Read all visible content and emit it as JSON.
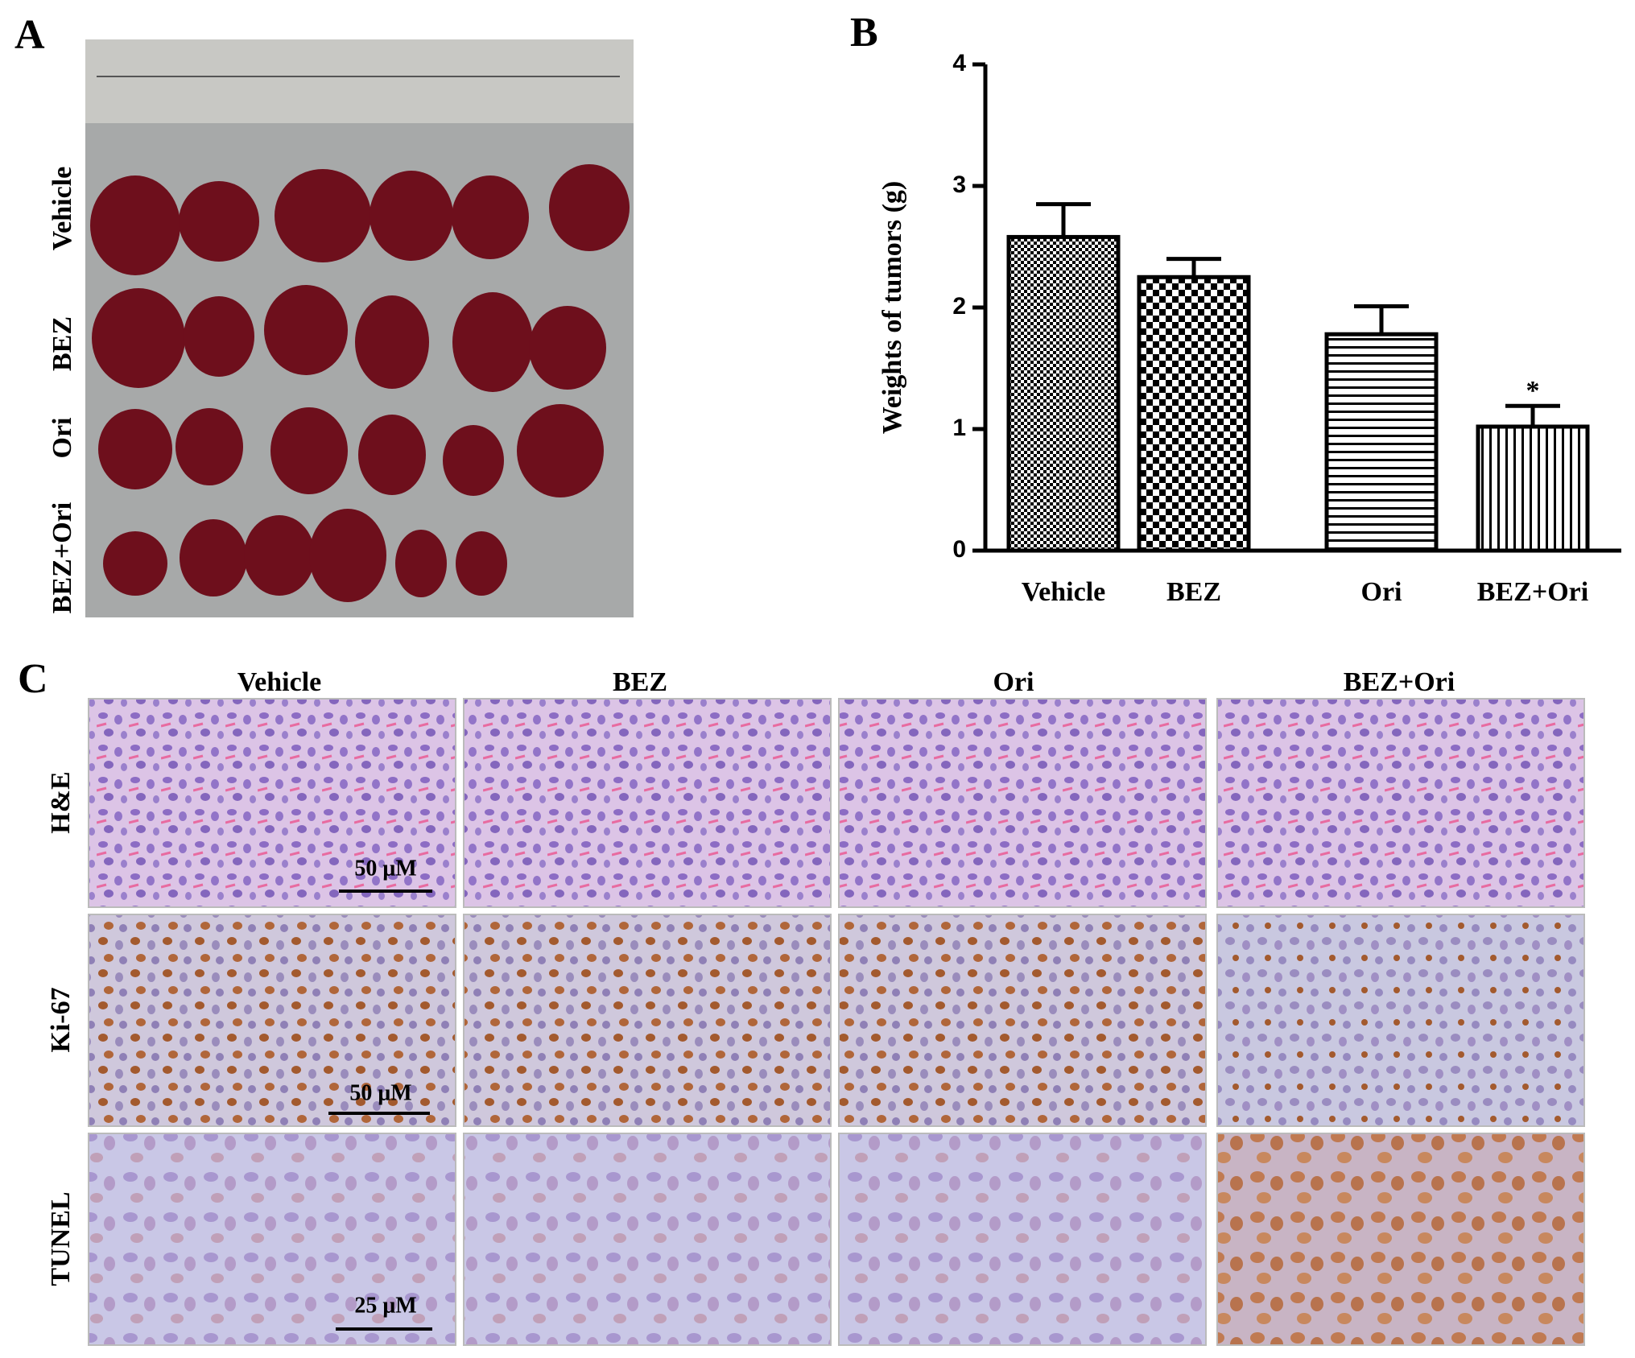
{
  "chart_data": {
    "type": "bar",
    "panel": "B",
    "ylabel": "Weights of tumors (g)",
    "categories": [
      "Vehicle",
      "BEZ",
      "Ori",
      "BEZ+Ori"
    ],
    "values": [
      2.58,
      2.25,
      1.78,
      1.02
    ],
    "errors": [
      0.27,
      0.15,
      0.23,
      0.17
    ],
    "significance": [
      null,
      null,
      null,
      "*"
    ],
    "fill_patterns": [
      "crosshatch",
      "checker",
      "horizontal",
      "vertical"
    ],
    "color": "#000000",
    "ylim": [
      0,
      4
    ],
    "yticks": [
      0,
      1,
      2,
      3,
      4
    ],
    "grid": false
  },
  "panel_a": {
    "label": "A",
    "rows": [
      "Vehicle",
      "BEZ",
      "Ori",
      "BEZ+Ori"
    ]
  },
  "panel_c": {
    "label": "C",
    "columns": [
      "Vehicle",
      "BEZ",
      "Ori",
      "BEZ+Ori"
    ],
    "rows": [
      "H&E",
      "Ki-67",
      "TUNEL"
    ],
    "scale_bars": [
      "50 μM",
      "50 μM",
      "25 μM"
    ]
  }
}
